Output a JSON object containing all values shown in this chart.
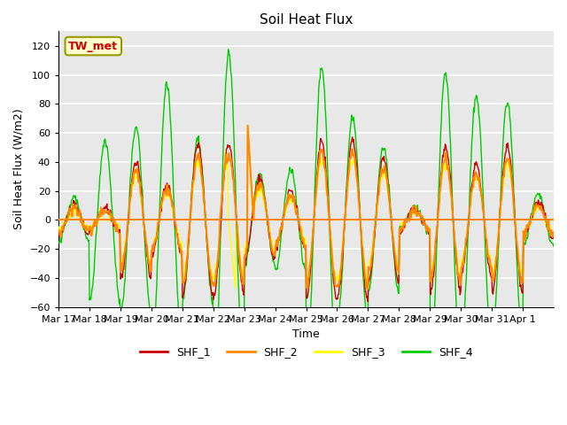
{
  "title": "Soil Heat Flux",
  "xlabel": "Time",
  "ylabel": "Soil Heat Flux (W/m2)",
  "ylim": [
    -60,
    130
  ],
  "yticks": [
    -60,
    -40,
    -20,
    0,
    20,
    40,
    60,
    80,
    100,
    120
  ],
  "annotation": "TW_met",
  "annotation_color": "#cc0000",
  "annotation_bg": "#ffffcc",
  "annotation_border": "#999900",
  "plot_bg": "#e8e8e8",
  "grid_color": "#ffffff",
  "shf1_color": "#cc0000",
  "shf2_color": "#ff8800",
  "shf3_color": "#ffff00",
  "shf4_color": "#00cc00",
  "x_tick_labels": [
    "Mar 17",
    "Mar 18",
    "Mar 19",
    "Mar 20",
    "Mar 21",
    "Mar 22",
    "Mar 23",
    "Mar 24",
    "Mar 25",
    "Mar 26",
    "Mar 27",
    "Mar 28",
    "Mar 29",
    "Mar 30",
    "Mar 31",
    "Apr 1"
  ],
  "n_days": 16,
  "pts_per_day": 48
}
